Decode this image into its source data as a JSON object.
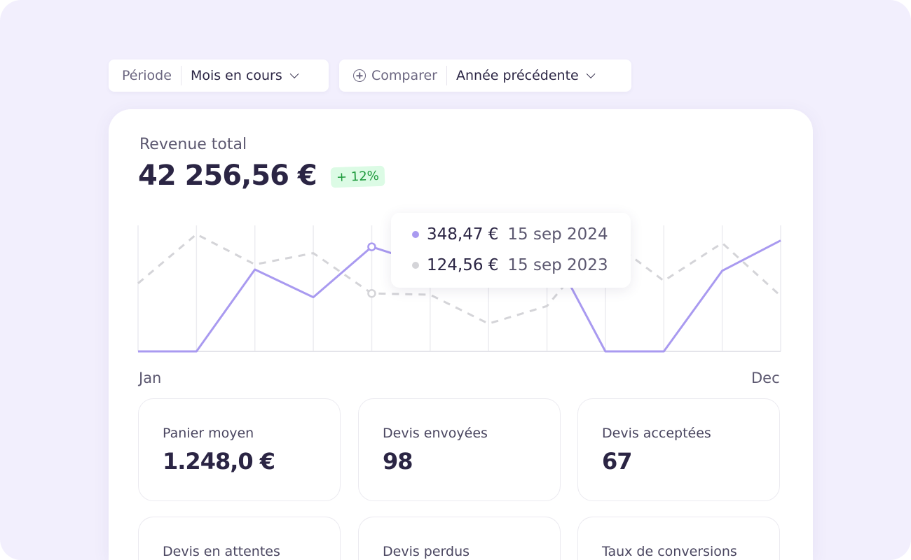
{
  "filters": {
    "period_label": "Période",
    "period_value": "Mois en cours",
    "compare_label": "Comparer",
    "compare_value": "Année précédente"
  },
  "revenue": {
    "label": "Revenue total",
    "value": "42 256,56 €",
    "change": "+ 12%",
    "change_color": "#1e9a3c"
  },
  "tooltip": {
    "current_value": "348,47 €",
    "current_date": "15 sep 2024",
    "previous_value": "124,56 €",
    "previous_date": "15 sep 2023"
  },
  "chart_data": {
    "type": "line",
    "x_start_label": "Jan",
    "x_end_label": "Dec",
    "points_per_series": 12,
    "ylim": [
      0,
      100
    ],
    "grid": "vertical",
    "highlight_index": 4,
    "series": [
      {
        "style": "solid",
        "color": "#a99af0",
        "values": [
          0,
          0,
          65,
          43,
          83,
          68,
          84,
          87,
          0,
          0,
          64,
          88
        ]
      },
      {
        "style": "dashed",
        "color": "#d4d4d8",
        "values": [
          54,
          93,
          69,
          78,
          46,
          45,
          22,
          36,
          91,
          56,
          86,
          44
        ]
      }
    ]
  },
  "stats": [
    {
      "label": "Panier moyen",
      "value": "1.248,0 €"
    },
    {
      "label": "Devis envoyées",
      "value": "98"
    },
    {
      "label": "Devis acceptées",
      "value": "67"
    },
    {
      "label": "Devis en attentes",
      "value": ""
    },
    {
      "label": "Devis perdus",
      "value": ""
    },
    {
      "label": "Taux de conversions",
      "value": ""
    }
  ]
}
